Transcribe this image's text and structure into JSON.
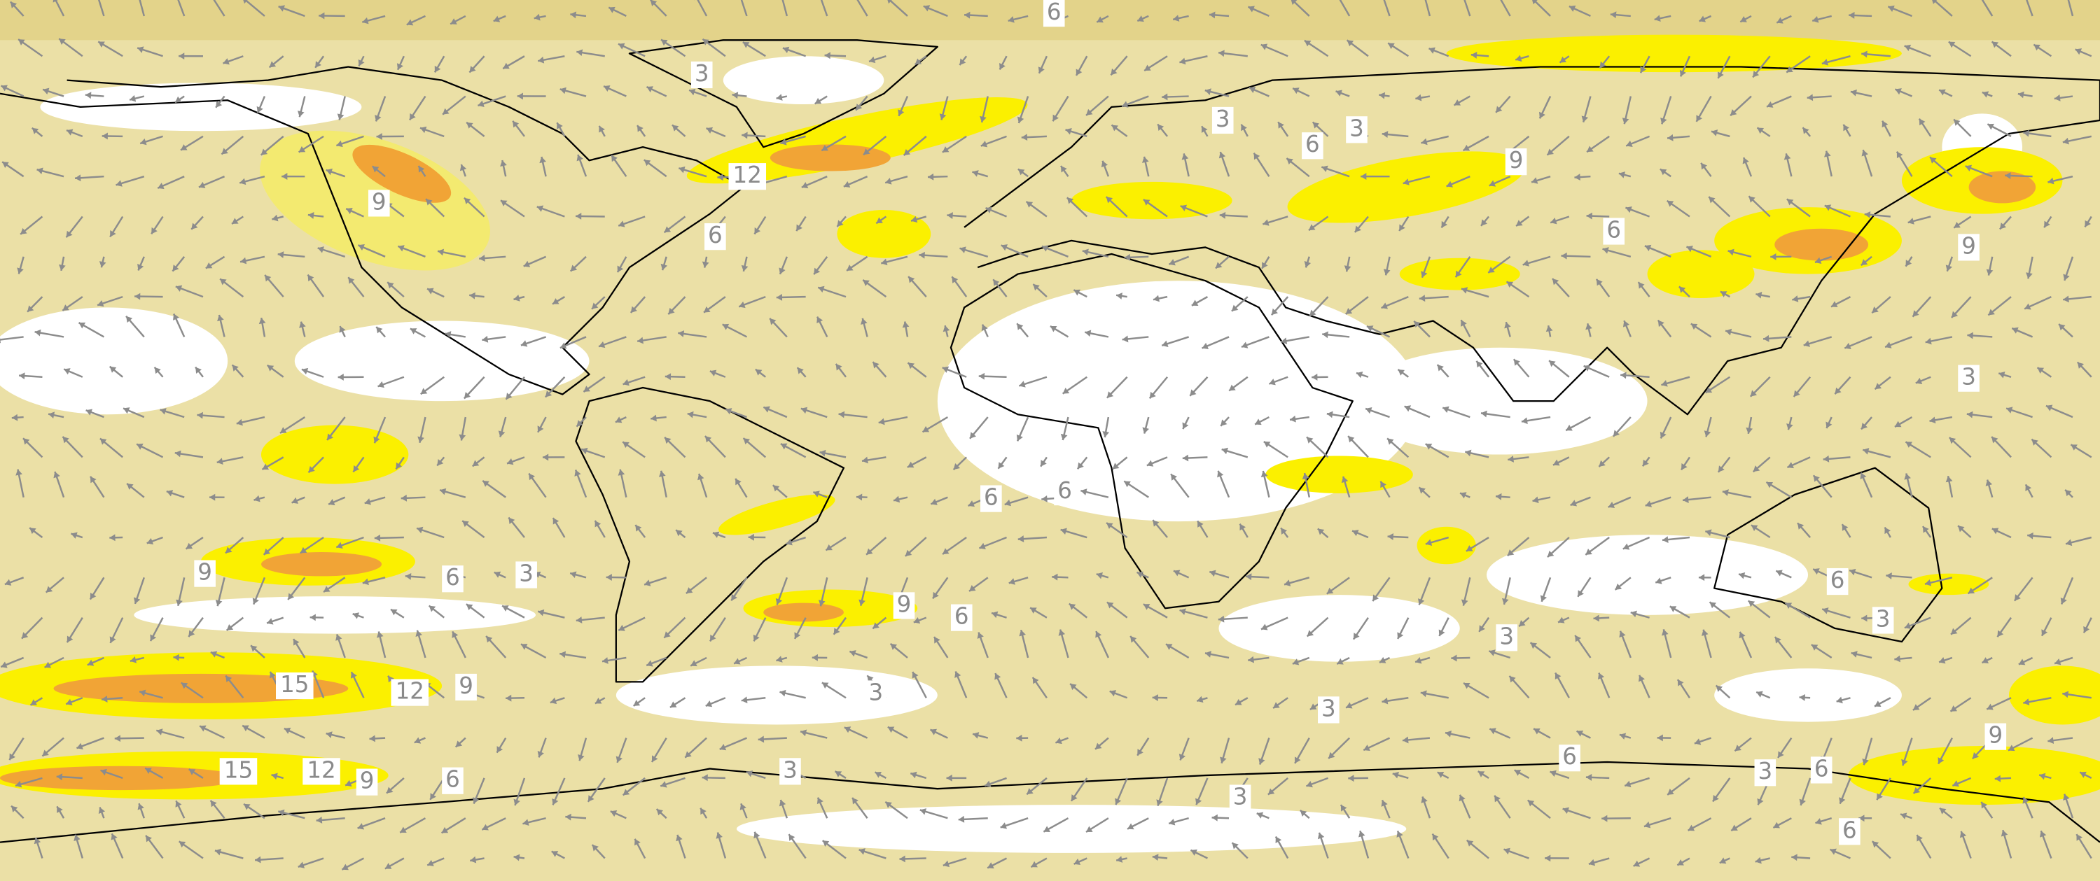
{
  "map": {
    "contour_labels": [
      "6",
      "3",
      "12",
      "9",
      "6",
      "3",
      "6",
      "3",
      "9",
      "6",
      "9",
      "3",
      "6",
      "6",
      "9",
      "6",
      "3",
      "9",
      "6",
      "6",
      "3",
      "3",
      "15",
      "12",
      "9",
      "3",
      "3",
      "9",
      "15",
      "12",
      "9",
      "6",
      "3",
      "6",
      "3",
      "6",
      "3",
      "6"
    ]
  }
}
